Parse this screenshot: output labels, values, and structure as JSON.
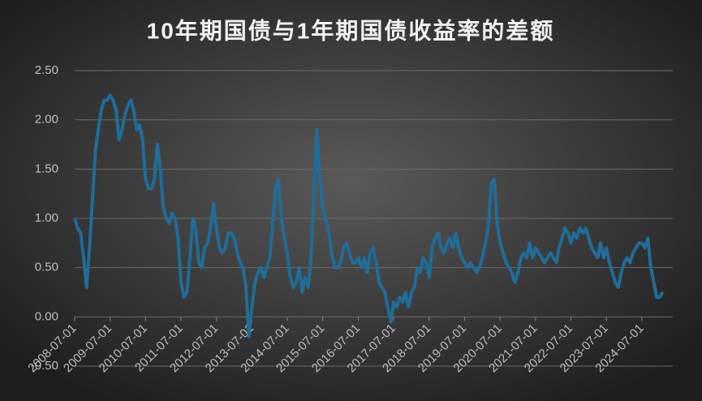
{
  "chart_data": {
    "type": "line",
    "title": "10年期国债与1年期国债收益率的差额",
    "x": [
      "2008-07-01",
      "2008-08-01",
      "2008-09-01",
      "2008-10-01",
      "2008-11-01",
      "2008-12-01",
      "2009-01-01",
      "2009-02-01",
      "2009-03-01",
      "2009-04-01",
      "2009-05-01",
      "2009-06-01",
      "2009-07-01",
      "2009-08-01",
      "2009-09-01",
      "2009-10-01",
      "2009-11-01",
      "2009-12-01",
      "2010-01-01",
      "2010-02-01",
      "2010-03-01",
      "2010-04-01",
      "2010-05-01",
      "2010-06-01",
      "2010-07-01",
      "2010-08-01",
      "2010-09-01",
      "2010-10-01",
      "2010-11-01",
      "2010-12-01",
      "2011-01-01",
      "2011-02-01",
      "2011-03-01",
      "2011-04-01",
      "2011-05-01",
      "2011-06-01",
      "2011-07-01",
      "2011-08-01",
      "2011-09-01",
      "2011-10-01",
      "2011-11-01",
      "2011-12-01",
      "2012-01-01",
      "2012-02-01",
      "2012-03-01",
      "2012-04-01",
      "2012-05-01",
      "2012-06-01",
      "2012-07-01",
      "2012-08-01",
      "2012-09-01",
      "2012-10-01",
      "2012-11-01",
      "2012-12-01",
      "2013-01-01",
      "2013-02-01",
      "2013-03-01",
      "2013-04-01",
      "2013-05-01",
      "2013-06-01",
      "2013-07-01",
      "2013-08-01",
      "2013-09-01",
      "2013-10-01",
      "2013-11-01",
      "2013-12-01",
      "2014-01-01",
      "2014-02-01",
      "2014-03-01",
      "2014-04-01",
      "2014-05-01",
      "2014-06-01",
      "2014-07-01",
      "2014-08-01",
      "2014-09-01",
      "2014-10-01",
      "2014-11-01",
      "2014-12-01",
      "2015-01-01",
      "2015-02-01",
      "2015-03-01",
      "2015-04-01",
      "2015-05-01",
      "2015-06-01",
      "2015-07-01",
      "2015-08-01",
      "2015-09-01",
      "2015-10-01",
      "2015-11-01",
      "2015-12-01",
      "2016-01-01",
      "2016-02-01",
      "2016-03-01",
      "2016-04-01",
      "2016-05-01",
      "2016-06-01",
      "2016-07-01",
      "2016-08-01",
      "2016-09-01",
      "2016-10-01",
      "2016-11-01",
      "2016-12-01",
      "2017-01-01",
      "2017-02-01",
      "2017-03-01",
      "2017-04-01",
      "2017-05-01",
      "2017-06-01",
      "2017-07-01",
      "2017-08-01",
      "2017-09-01",
      "2017-10-01",
      "2017-11-01",
      "2017-12-01",
      "2018-01-01",
      "2018-02-01",
      "2018-03-01",
      "2018-04-01",
      "2018-05-01",
      "2018-06-01",
      "2018-07-01",
      "2018-08-01",
      "2018-09-01",
      "2018-10-01",
      "2018-11-01",
      "2018-12-01",
      "2019-01-01",
      "2019-02-01",
      "2019-03-01",
      "2019-04-01",
      "2019-05-01",
      "2019-06-01",
      "2019-07-01",
      "2019-08-01",
      "2019-09-01",
      "2019-10-01",
      "2019-11-01",
      "2019-12-01",
      "2020-01-01",
      "2020-02-01",
      "2020-03-01",
      "2020-04-01",
      "2020-05-01",
      "2020-06-01",
      "2020-07-01",
      "2020-08-01",
      "2020-09-01",
      "2020-10-01",
      "2020-11-01",
      "2020-12-01",
      "2021-01-01",
      "2021-02-01",
      "2021-03-01",
      "2021-04-01",
      "2021-05-01",
      "2021-06-01",
      "2021-07-01",
      "2021-08-01",
      "2021-09-01",
      "2021-10-01",
      "2021-11-01",
      "2021-12-01",
      "2022-01-01",
      "2022-02-01",
      "2022-03-01",
      "2022-04-01",
      "2022-05-01",
      "2022-06-01",
      "2022-07-01",
      "2022-08-01",
      "2022-09-01",
      "2022-10-01",
      "2022-11-01",
      "2022-12-01",
      "2023-01-01",
      "2023-02-01",
      "2023-03-01",
      "2023-04-01",
      "2023-05-01",
      "2023-06-01",
      "2023-07-01",
      "2023-08-01",
      "2023-09-01",
      "2023-10-01",
      "2023-11-01",
      "2023-12-01",
      "2024-01-01",
      "2024-02-01",
      "2024-03-01",
      "2024-04-01",
      "2024-05-01",
      "2024-06-01",
      "2024-07-01",
      "2024-08-01",
      "2024-09-01",
      "2024-10-01",
      "2024-11-01",
      "2024-12-01",
      "2025-01-01",
      "2025-02-01"
    ],
    "series": [
      {
        "color": "#1f6d98",
        "values": [
          1.0,
          0.9,
          0.85,
          0.6,
          0.3,
          0.7,
          1.2,
          1.7,
          1.9,
          2.1,
          2.2,
          2.2,
          2.25,
          2.2,
          2.1,
          1.8,
          1.9,
          2.05,
          2.15,
          2.2,
          2.1,
          1.9,
          1.95,
          1.8,
          1.4,
          1.3,
          1.3,
          1.4,
          1.75,
          1.5,
          1.1,
          1.0,
          0.95,
          1.05,
          1.0,
          0.8,
          0.35,
          0.2,
          0.25,
          0.6,
          1.0,
          0.9,
          0.55,
          0.5,
          0.7,
          0.75,
          0.9,
          1.15,
          0.9,
          0.7,
          0.65,
          0.7,
          0.85,
          0.85,
          0.8,
          0.65,
          0.55,
          0.5,
          0.3,
          -0.2,
          0.1,
          0.35,
          0.45,
          0.5,
          0.4,
          0.5,
          0.6,
          0.95,
          1.3,
          1.4,
          1.0,
          0.8,
          0.65,
          0.4,
          0.3,
          0.35,
          0.5,
          0.25,
          0.4,
          0.3,
          0.6,
          1.2,
          1.9,
          1.4,
          1.1,
          1.0,
          0.85,
          0.65,
          0.5,
          0.5,
          0.55,
          0.7,
          0.75,
          0.65,
          0.55,
          0.55,
          0.6,
          0.5,
          0.6,
          0.45,
          0.65,
          0.7,
          0.55,
          0.35,
          0.3,
          0.25,
          0.1,
          -0.05,
          0.15,
          0.1,
          0.2,
          0.15,
          0.25,
          0.1,
          0.25,
          0.3,
          0.5,
          0.45,
          0.6,
          0.55,
          0.4,
          0.7,
          0.8,
          0.85,
          0.7,
          0.65,
          0.75,
          0.8,
          0.7,
          0.85,
          0.7,
          0.6,
          0.55,
          0.5,
          0.55,
          0.5,
          0.45,
          0.5,
          0.6,
          0.75,
          0.9,
          1.35,
          1.4,
          0.95,
          0.75,
          0.65,
          0.55,
          0.5,
          0.45,
          0.35,
          0.45,
          0.6,
          0.65,
          0.6,
          0.75,
          0.6,
          0.7,
          0.65,
          0.6,
          0.55,
          0.6,
          0.65,
          0.6,
          0.55,
          0.7,
          0.8,
          0.9,
          0.85,
          0.75,
          0.85,
          0.8,
          0.9,
          0.85,
          0.9,
          0.8,
          0.7,
          0.65,
          0.6,
          0.75,
          0.6,
          0.7,
          0.55,
          0.45,
          0.35,
          0.3,
          0.45,
          0.55,
          0.6,
          0.55,
          0.65,
          0.7,
          0.75,
          0.75,
          0.7,
          0.8,
          0.5,
          0.35,
          0.2,
          0.2,
          0.25
        ]
      }
    ],
    "xlim": [
      "2008-07-01",
      "2025-03-01"
    ],
    "xticks": [
      "2008-07-01",
      "2009-07-01",
      "2010-07-01",
      "2011-07-01",
      "2012-07-01",
      "2013-07-01",
      "2014-07-01",
      "2015-07-01",
      "2016-07-01",
      "2017-07-01",
      "2018-07-01",
      "2019-07-01",
      "2020-07-01",
      "2021-07-01",
      "2022-07-01",
      "2023-07-01",
      "2024-07-01"
    ],
    "ylim": [
      -0.5,
      2.5
    ],
    "yticks": [
      {
        "value": -0.5,
        "label": "-0.50"
      },
      {
        "value": 0,
        "label": "0.00"
      },
      {
        "value": 0.5,
        "label": "0.50"
      },
      {
        "value": 1,
        "label": "1.00"
      },
      {
        "value": 1.5,
        "label": "1.50"
      },
      {
        "value": 2,
        "label": "2.00"
      },
      {
        "value": 2.5,
        "label": "2.50"
      }
    ],
    "grid": true
  }
}
